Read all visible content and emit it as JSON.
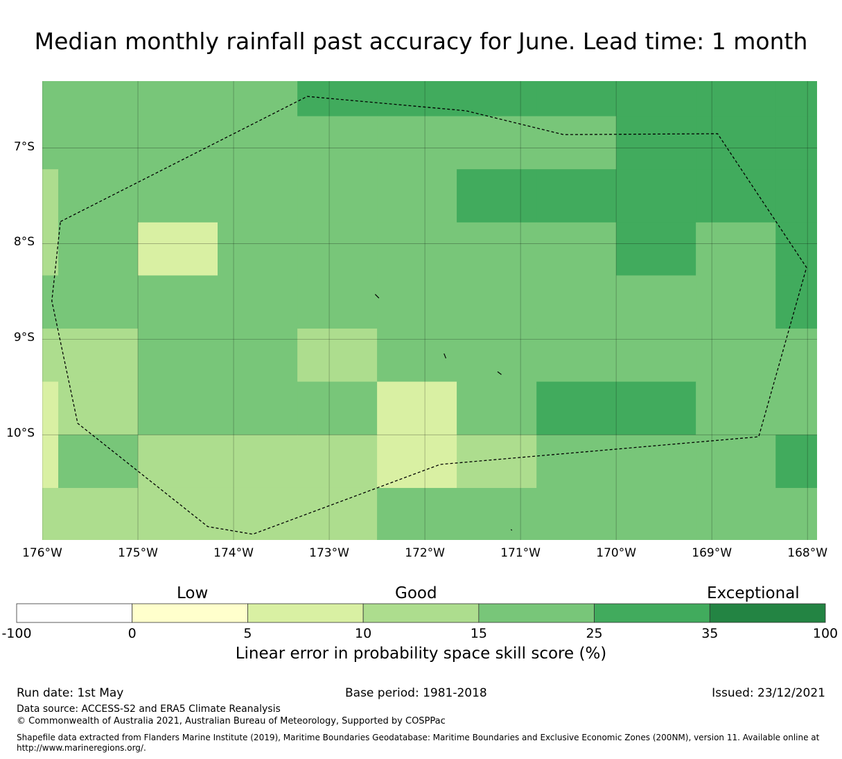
{
  "title": "Median monthly rainfall past accuracy for June. Lead time: 1 month",
  "map": {
    "lon_range": [
      -176.0,
      -167.9
    ],
    "lat_range": [
      -6.3,
      -11.1
    ],
    "lat_labels": [
      {
        "lat": -7,
        "text": "7°S"
      },
      {
        "lat": -8,
        "text": "8°S"
      },
      {
        "lat": -9,
        "text": "9°S"
      },
      {
        "lat": -10,
        "text": "10°S"
      }
    ],
    "lon_labels": [
      {
        "lon": -176,
        "text": "176°W"
      },
      {
        "lon": -175,
        "text": "175°W"
      },
      {
        "lon": -174,
        "text": "174°W"
      },
      {
        "lon": -173,
        "text": "173°W"
      },
      {
        "lon": -172,
        "text": "172°W"
      },
      {
        "lon": -171,
        "text": "171°W"
      },
      {
        "lon": -170,
        "text": "170°W"
      },
      {
        "lon": -169,
        "text": "169°W"
      },
      {
        "lon": -168,
        "text": "168°W"
      }
    ],
    "grid": {
      "lon_edges": [
        -176.0,
        -175.833,
        -175.0,
        -174.167,
        -173.333,
        -172.5,
        -171.667,
        -170.833,
        -170.0,
        -169.167,
        -168.333,
        -167.9
      ],
      "lat_edges": [
        -6.3,
        -6.667,
        -7.222,
        -7.778,
        -8.333,
        -8.889,
        -9.444,
        -10.0,
        -10.556,
        -11.1
      ],
      "levels": [
        [
          4,
          4,
          4,
          4,
          5,
          5,
          5,
          5,
          5,
          5,
          5
        ],
        [
          4,
          4,
          4,
          4,
          4,
          4,
          4,
          4,
          5,
          5,
          5
        ],
        [
          3,
          4,
          4,
          4,
          4,
          4,
          5,
          5,
          5,
          5,
          5
        ],
        [
          3,
          4,
          2,
          4,
          4,
          4,
          4,
          4,
          5,
          4,
          5
        ],
        [
          4,
          4,
          4,
          4,
          4,
          4,
          4,
          4,
          4,
          4,
          5
        ],
        [
          3,
          3,
          4,
          4,
          3,
          4,
          4,
          4,
          4,
          4,
          4
        ],
        [
          2,
          3,
          4,
          4,
          4,
          2,
          4,
          5,
          5,
          4,
          4
        ],
        [
          2,
          4,
          3,
          3,
          3,
          2,
          3,
          4,
          4,
          4,
          5
        ],
        [
          3,
          3,
          3,
          3,
          3,
          4,
          4,
          4,
          4,
          4,
          4
        ]
      ],
      "boundary_path": [
        [
          -175.81,
          -7.77
        ],
        [
          -173.23,
          -6.46
        ],
        [
          -171.57,
          -6.61
        ],
        [
          -170.55,
          -6.86
        ],
        [
          -168.94,
          -6.85
        ],
        [
          -168.01,
          -8.25
        ],
        [
          -168.51,
          -10.02
        ],
        [
          -171.84,
          -10.31
        ],
        [
          -173.8,
          -11.04
        ],
        [
          -174.27,
          -10.96
        ],
        [
          -175.63,
          -9.88
        ],
        [
          -175.9,
          -8.6
        ],
        [
          -175.81,
          -7.77
        ]
      ],
      "islands": [
        [
          [
            -172.52,
            -8.53
          ],
          [
            -172.48,
            -8.57
          ]
        ],
        [
          [
            -171.8,
            -9.15
          ],
          [
            -171.78,
            -9.2
          ]
        ],
        [
          [
            -171.24,
            -9.34
          ],
          [
            -171.2,
            -9.37
          ]
        ],
        [
          [
            -171.1,
            -10.99
          ],
          [
            -171.09,
            -11.0
          ]
        ]
      ]
    }
  },
  "legend": {
    "category_labels": [
      "Low",
      "Good",
      "Exceptional"
    ],
    "tick_labels": [
      "-100",
      "0",
      "5",
      "10",
      "15",
      "25",
      "35",
      "100"
    ],
    "colors": [
      "#ffffff",
      "#ffffcc",
      "#d9f0a3",
      "#addd8e",
      "#78c679",
      "#41ab5d",
      "#238443"
    ],
    "title": "Linear error in probability space skill score (%)"
  },
  "footer": {
    "run_date": "Run date: 1st May",
    "base_period": "Base period: 1981-2018",
    "issued": "Issued: 23/12/2021",
    "data_source": "Data source: ACCESS-S2 and ERA5 Climate Reanalysis",
    "copyright": "© Commonwealth of Australia 2021, Australian Bureau of Meteorology, Supported by COSPPac",
    "shapefile_line1": "Shapefile data extracted from Flanders Marine Institute (2019), Maritime Boundaries Geodatabase: Maritime Boundaries and Exclusive Economic Zones (200NM), version 11. Available online at",
    "shapefile_line2": "http://www.marineregions.org/."
  }
}
